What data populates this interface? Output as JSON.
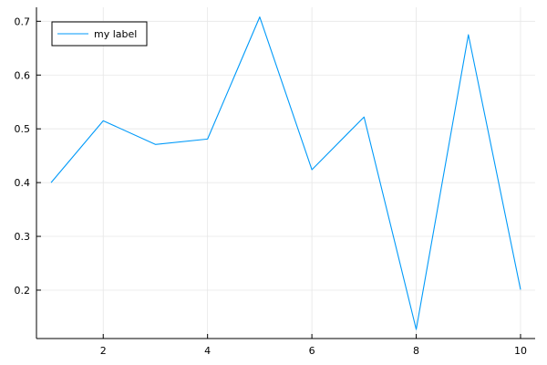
{
  "chart_data": {
    "type": "line",
    "title": "",
    "xlabel": "",
    "ylabel": "",
    "x": [
      1,
      2,
      3,
      4,
      5,
      6,
      7,
      8,
      9,
      10
    ],
    "series": [
      {
        "name": "my label",
        "color": "#009af9",
        "values": [
          0.4,
          0.515,
          0.471,
          0.481,
          0.708,
          0.424,
          0.522,
          0.127,
          0.675,
          0.201
        ]
      }
    ],
    "xlim": [
      0.72,
      10.28
    ],
    "ylim": [
      0.11,
      0.726
    ],
    "xticks": [
      2,
      4,
      6,
      8,
      10
    ],
    "yticks": [
      0.2,
      0.3,
      0.4,
      0.5,
      0.6,
      0.7
    ],
    "xtick_labels": [
      "2",
      "4",
      "6",
      "8",
      "10"
    ],
    "ytick_labels": [
      "0.2",
      "0.3",
      "0.4",
      "0.5",
      "0.6",
      "0.7"
    ],
    "grid": true,
    "legend_position": "top-left"
  }
}
